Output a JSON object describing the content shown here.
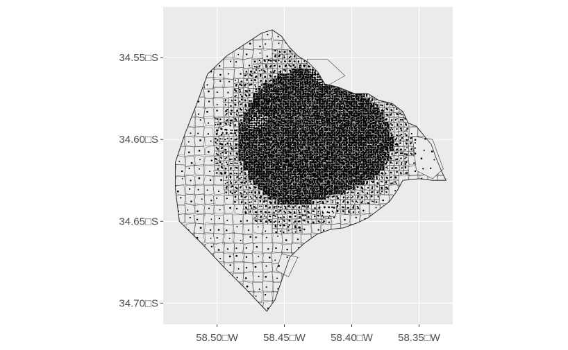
{
  "chart_data": {
    "type": "map",
    "description_free": true,
    "x_axis": {
      "ticks": [
        {
          "value": -58.5,
          "label": "58.50□W"
        },
        {
          "value": -58.45,
          "label": "58.45□W"
        },
        {
          "value": -58.4,
          "label": "58.40□W"
        },
        {
          "value": -58.35,
          "label": "58.35□W"
        }
      ],
      "xlim": [
        -58.54,
        -58.325
      ]
    },
    "y_axis": {
      "ticks": [
        {
          "value": -34.55,
          "label": "34.55□S"
        },
        {
          "value": -34.6,
          "label": "34.60□S"
        },
        {
          "value": -34.65,
          "label": "34.65□S"
        },
        {
          "value": -34.7,
          "label": "34.70□S"
        }
      ],
      "ylim": [
        -34.713,
        -34.519
      ]
    },
    "grid": true,
    "boundary_lonlat": [
      [
        -58.459,
        -34.533
      ],
      [
        -58.452,
        -34.537
      ],
      [
        -58.447,
        -34.543
      ],
      [
        -58.44,
        -34.549
      ],
      [
        -58.432,
        -34.553
      ],
      [
        -58.425,
        -34.559
      ],
      [
        -58.42,
        -34.566
      ],
      [
        -58.41,
        -34.568
      ],
      [
        -58.398,
        -34.572
      ],
      [
        -58.388,
        -34.572
      ],
      [
        -58.38,
        -34.576
      ],
      [
        -58.37,
        -34.578
      ],
      [
        -58.362,
        -34.583
      ],
      [
        -58.358,
        -34.59
      ],
      [
        -58.352,
        -34.592
      ],
      [
        -58.347,
        -34.597
      ],
      [
        -58.341,
        -34.603
      ],
      [
        -58.337,
        -34.612
      ],
      [
        -58.333,
        -34.62
      ],
      [
        -58.33,
        -34.625
      ],
      [
        -58.34,
        -34.625
      ],
      [
        -58.35,
        -34.624
      ],
      [
        -58.362,
        -34.625
      ],
      [
        -58.366,
        -34.631
      ],
      [
        -58.372,
        -34.638
      ],
      [
        -58.38,
        -34.643
      ],
      [
        -58.388,
        -34.648
      ],
      [
        -58.396,
        -34.651
      ],
      [
        -58.406,
        -34.654
      ],
      [
        -58.416,
        -34.655
      ],
      [
        -58.426,
        -34.658
      ],
      [
        -58.436,
        -34.664
      ],
      [
        -58.446,
        -34.672
      ],
      [
        -58.452,
        -34.686
      ],
      [
        -58.457,
        -34.698
      ],
      [
        -58.463,
        -34.705
      ],
      [
        -58.478,
        -34.692
      ],
      [
        -58.495,
        -34.678
      ],
      [
        -58.512,
        -34.663
      ],
      [
        -58.528,
        -34.65
      ],
      [
        -58.531,
        -34.63
      ],
      [
        -58.531,
        -34.614
      ],
      [
        -58.524,
        -34.597
      ],
      [
        -58.515,
        -34.578
      ],
      [
        -58.507,
        -34.56
      ],
      [
        -58.493,
        -34.549
      ],
      [
        -58.478,
        -34.541
      ],
      [
        -58.467,
        -34.535
      ]
    ],
    "green_spaces_lonlat": [
      [
        [
          -58.433,
          -34.551
        ],
        [
          -58.418,
          -34.551
        ],
        [
          -58.405,
          -34.561
        ],
        [
          -58.42,
          -34.568
        ],
        [
          -58.432,
          -34.561
        ]
      ],
      [
        [
          -58.47,
          -34.583
        ],
        [
          -58.461,
          -34.586
        ],
        [
          -58.466,
          -34.594
        ],
        [
          -58.478,
          -34.592
        ]
      ],
      [
        [
          -58.499,
          -34.593
        ],
        [
          -58.488,
          -34.59
        ],
        [
          -58.487,
          -34.596
        ],
        [
          -58.5,
          -34.598
        ]
      ],
      [
        [
          -58.355,
          -34.598
        ],
        [
          -58.34,
          -34.6
        ],
        [
          -58.332,
          -34.618
        ],
        [
          -58.34,
          -34.624
        ],
        [
          -58.352,
          -34.619
        ]
      ],
      [
        [
          -58.424,
          -34.639
        ],
        [
          -58.411,
          -34.64
        ],
        [
          -58.412,
          -34.647
        ],
        [
          -58.423,
          -34.647
        ]
      ],
      [
        [
          -58.452,
          -34.67
        ],
        [
          -58.44,
          -34.672
        ],
        [
          -58.447,
          -34.684
        ],
        [
          -58.456,
          -34.68
        ]
      ]
    ],
    "density_centers_lonlat": [
      {
        "lon": -58.395,
        "lat": -34.603,
        "weight": 1.0
      },
      {
        "lon": -58.425,
        "lat": -34.596,
        "weight": 0.8
      },
      {
        "lon": -58.44,
        "lat": -34.575,
        "weight": 0.7
      },
      {
        "lon": -58.45,
        "lat": -34.63,
        "weight": 0.6
      },
      {
        "lon": -58.47,
        "lat": -34.6,
        "weight": 0.55
      }
    ]
  }
}
